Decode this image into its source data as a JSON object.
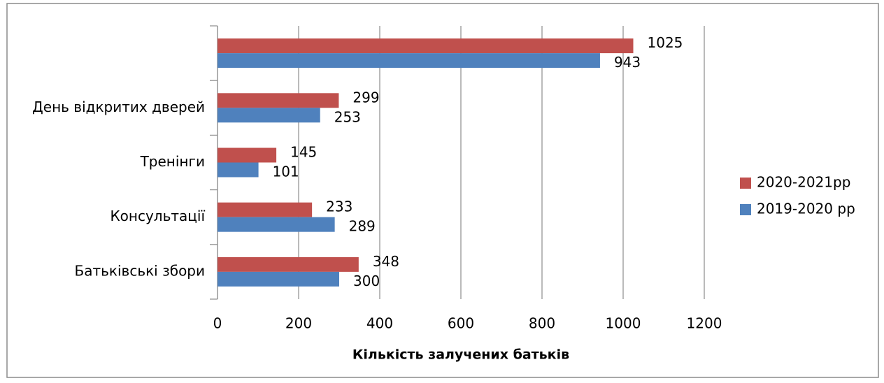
{
  "chart_data": {
    "type": "barh",
    "x_label": "Кількість залучених батьків",
    "categories": [
      "Батьківські збори",
      "Консультації",
      "Тренінги",
      "День відкритих дверей",
      null
    ],
    "series": [
      {
        "name": "2020-2021рр",
        "color": "#c0504d",
        "values": [
          348,
          233,
          145,
          299,
          1025
        ]
      },
      {
        "name": "2019-2020 рр",
        "color": "#4f81bd",
        "values": [
          300,
          289,
          101,
          253,
          943
        ]
      }
    ],
    "xlim": [
      0,
      1200
    ],
    "xticks": [
      0,
      200,
      400,
      600,
      800,
      1000,
      1200
    ],
    "grid": true,
    "legend": "right"
  }
}
